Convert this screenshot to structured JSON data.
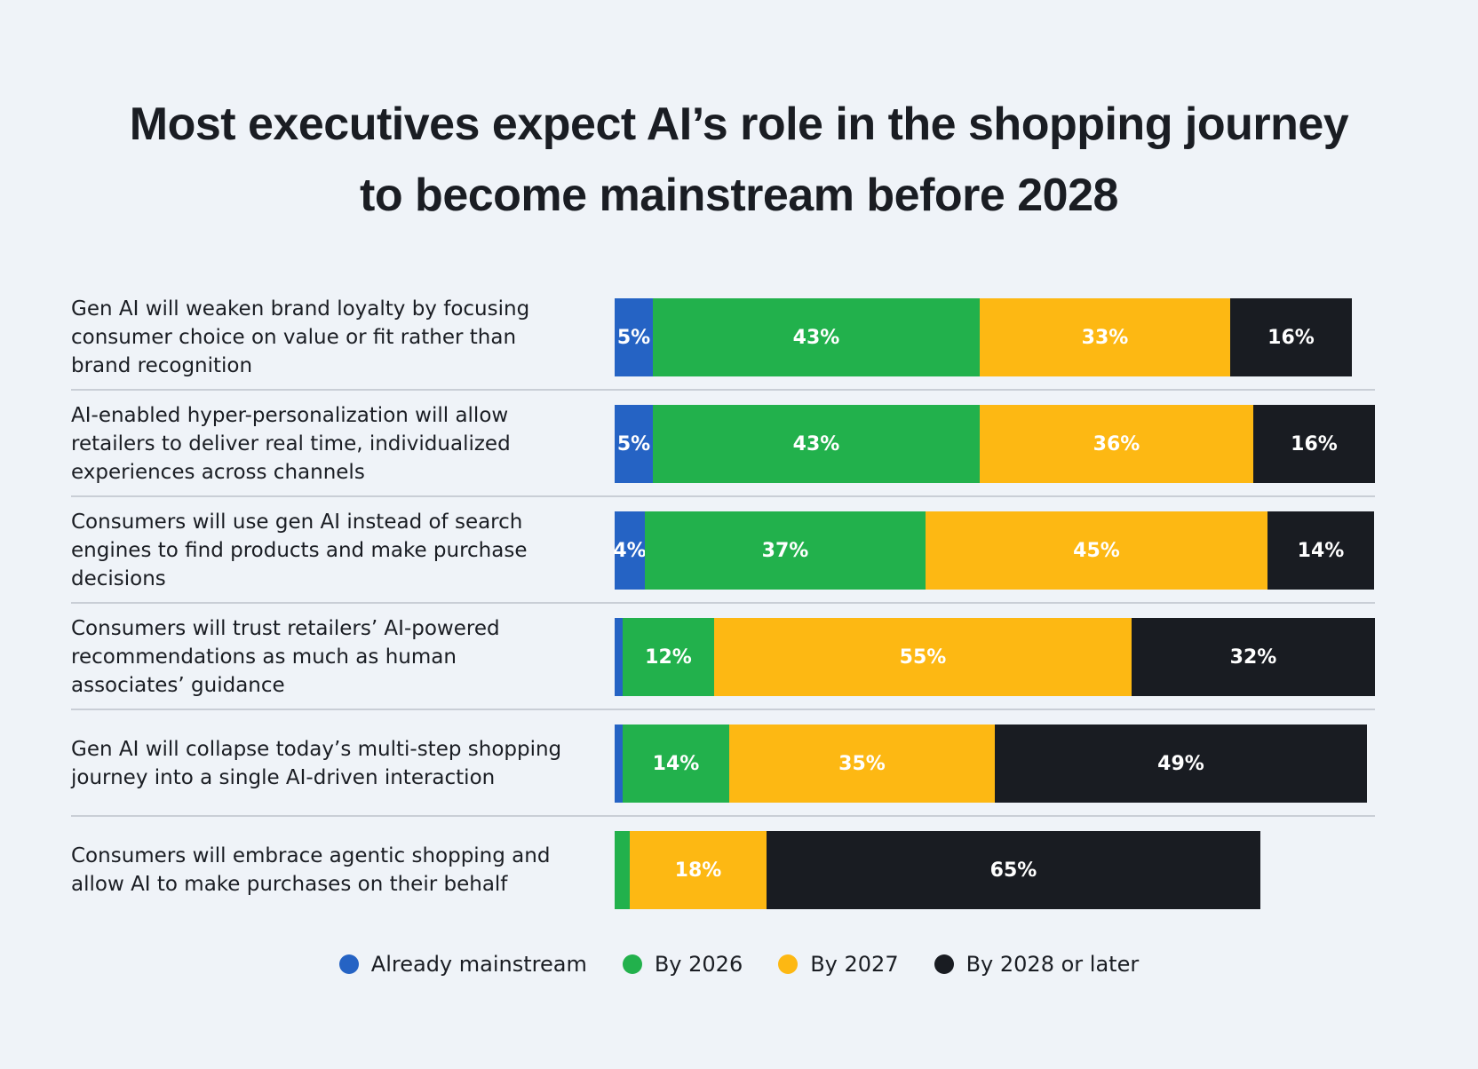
{
  "chart_data": {
    "type": "bar",
    "orientation": "horizontal",
    "stacked": true,
    "title": "Most executives expect AI’s role in the shopping journey to become mainstream before 2028",
    "title_lines": [
      "Most executives expect AI’s role in the shopping journey",
      "to become mainstream before 2028"
    ],
    "categories": [
      "Gen AI will weaken brand loyalty by focusing consumer choice on value or fit rather than brand recognition",
      "AI-enabled hyper-personalization will allow retailers to deliver real time, individualized experiences across channels",
      "Consumers will use gen AI instead of search engines to find products and make purchase decisions",
      "Consumers will trust retailers’ AI-powered recommendations as much as human associates’ guidance",
      "Gen AI will collapse today’s multi-step shopping journey into a single AI-driven interaction",
      "Consumers will embrace agentic shopping and allow AI to make purchases on their behalf"
    ],
    "series": [
      {
        "name": "Already mainstream",
        "color": "#2563c4",
        "values": [
          5,
          5,
          4,
          1,
          1,
          0
        ],
        "labels": [
          "5%",
          "5%",
          "4%",
          "",
          "",
          ""
        ]
      },
      {
        "name": "By 2026",
        "color": "#22b14c",
        "values": [
          43,
          43,
          37,
          12,
          14,
          2
        ],
        "labels": [
          "43%",
          "43%",
          "37%",
          "12%",
          "14%",
          ""
        ]
      },
      {
        "name": "By 2027",
        "color": "#fdb813",
        "values": [
          33,
          36,
          45,
          55,
          35,
          18
        ],
        "labels": [
          "33%",
          "36%",
          "45%",
          "55%",
          "35%",
          "18%"
        ]
      },
      {
        "name": "By 2028 or later",
        "color": "#191c22",
        "values": [
          16,
          16,
          14,
          32,
          49,
          65
        ],
        "labels": [
          "16%",
          "16%",
          "14%",
          "32%",
          "49%",
          "65%"
        ]
      }
    ],
    "xlim": [
      0,
      100
    ],
    "grid": false,
    "legend_position": "bottom"
  }
}
